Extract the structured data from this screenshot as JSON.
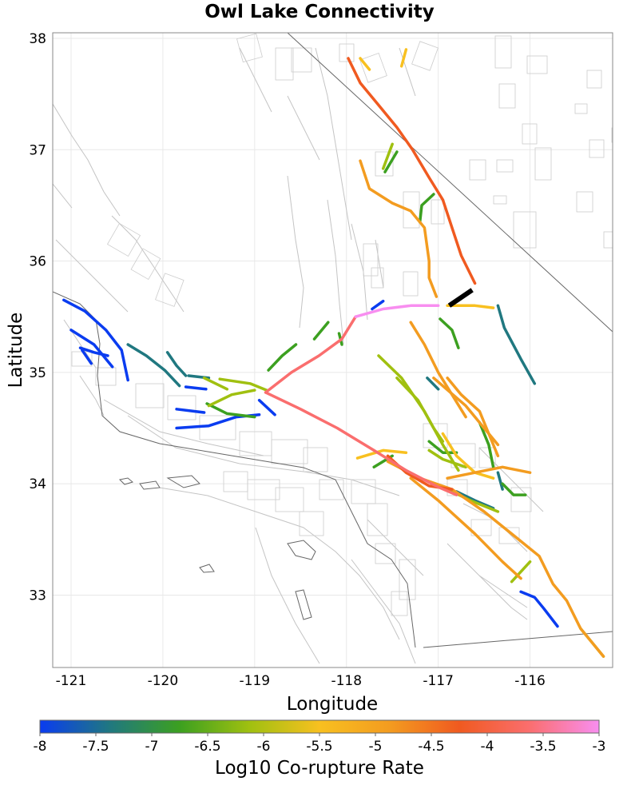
{
  "title": "Owl Lake Connectivity",
  "x_axis": {
    "label": "Longitude",
    "ticks": [
      "-121",
      "-120",
      "-119",
      "-118",
      "-117",
      "-116"
    ]
  },
  "y_axis": {
    "label": "Latitude",
    "ticks": [
      "33",
      "34",
      "35",
      "36",
      "37",
      "38"
    ]
  },
  "colorbar": {
    "label": "Log10 Co-rupture Rate",
    "ticks": [
      "-8",
      "-7.5",
      "-7",
      "-6.5",
      "-6",
      "-5.5",
      "-5",
      "-4.5",
      "-4",
      "-3.5",
      "-3"
    ],
    "colors": [
      "#0a3cf0",
      "#207880",
      "#3ca020",
      "#a0c010",
      "#f8c020",
      "#f39c20",
      "#f05a20",
      "#fa6e6e",
      "#f88ef0"
    ]
  },
  "map_data": {
    "extent": {
      "lon_min": -121.2,
      "lon_max": -115.1,
      "lat_min": 32.35,
      "lat_max": 38.05
    },
    "source_fault": {
      "name": "Owl Lake",
      "color": "#000000"
    },
    "ruptures": [
      {
        "color": "#0a3cf0",
        "pts": [
          [
            -121.08,
            35.65
          ],
          [
            -120.85,
            35.55
          ],
          [
            -120.62,
            35.38
          ],
          [
            -120.45,
            35.2
          ],
          [
            -120.38,
            34.93
          ]
        ]
      },
      {
        "color": "#0a3cf0",
        "pts": [
          [
            -121.0,
            35.38
          ],
          [
            -120.75,
            35.25
          ],
          [
            -120.55,
            35.05
          ]
        ]
      },
      {
        "color": "#0a3cf0",
        "pts": [
          [
            -120.9,
            35.22
          ],
          [
            -120.75,
            35.18
          ],
          [
            -120.6,
            35.15
          ]
        ]
      },
      {
        "color": "#0a3cf0",
        "pts": [
          [
            -120.88,
            35.2
          ],
          [
            -120.78,
            35.08
          ]
        ]
      },
      {
        "color": "#0a3cf0",
        "pts": [
          [
            -119.85,
            34.67
          ],
          [
            -119.55,
            34.64
          ]
        ]
      },
      {
        "color": "#0a3cf0",
        "pts": [
          [
            -119.85,
            34.5
          ],
          [
            -119.5,
            34.52
          ],
          [
            -119.2,
            34.6
          ],
          [
            -118.95,
            34.62
          ]
        ]
      },
      {
        "color": "#0a3cf0",
        "pts": [
          [
            -118.95,
            34.75
          ],
          [
            -118.78,
            34.62
          ]
        ]
      },
      {
        "color": "#0a3cf0",
        "pts": [
          [
            -119.75,
            34.87
          ],
          [
            -119.53,
            34.85
          ]
        ]
      },
      {
        "color": "#0a3cf0",
        "pts": [
          [
            -117.72,
            35.57
          ],
          [
            -117.6,
            35.64
          ]
        ]
      },
      {
        "color": "#0a3cf0",
        "pts": [
          [
            -116.1,
            33.03
          ],
          [
            -115.95,
            32.98
          ],
          [
            -115.85,
            32.88
          ],
          [
            -115.7,
            32.72
          ]
        ]
      },
      {
        "color": "#207880",
        "pts": [
          [
            -120.38,
            35.25
          ],
          [
            -120.18,
            35.15
          ],
          [
            -119.98,
            35.02
          ],
          [
            -119.82,
            34.88
          ]
        ]
      },
      {
        "color": "#207880",
        "pts": [
          [
            -119.95,
            35.18
          ],
          [
            -119.85,
            35.06
          ],
          [
            -119.75,
            34.97
          ]
        ]
      },
      {
        "color": "#207880",
        "pts": [
          [
            -119.72,
            34.97
          ],
          [
            -119.5,
            34.95
          ]
        ]
      },
      {
        "color": "#207880",
        "pts": [
          [
            -117.12,
            34.95
          ],
          [
            -117.0,
            34.85
          ]
        ]
      },
      {
        "color": "#207880",
        "pts": [
          [
            -116.35,
            35.6
          ],
          [
            -116.28,
            35.4
          ],
          [
            -116.1,
            35.12
          ],
          [
            -115.95,
            34.9
          ]
        ]
      },
      {
        "color": "#207880",
        "pts": [
          [
            -116.35,
            34.1
          ],
          [
            -116.3,
            33.95
          ]
        ]
      },
      {
        "color": "#207880",
        "pts": [
          [
            -116.8,
            33.93
          ],
          [
            -116.6,
            33.85
          ],
          [
            -116.4,
            33.78
          ]
        ]
      },
      {
        "color": "#3ca020",
        "pts": [
          [
            -118.85,
            35.02
          ],
          [
            -118.7,
            35.15
          ],
          [
            -118.55,
            35.25
          ]
        ]
      },
      {
        "color": "#3ca020",
        "pts": [
          [
            -118.35,
            35.3
          ],
          [
            -118.2,
            35.45
          ]
        ]
      },
      {
        "color": "#3ca020",
        "pts": [
          [
            -118.08,
            35.35
          ],
          [
            -118.05,
            35.25
          ]
        ]
      },
      {
        "color": "#3ca020",
        "pts": [
          [
            -117.58,
            36.8
          ],
          [
            -117.45,
            36.98
          ]
        ]
      },
      {
        "color": "#3ca020",
        "pts": [
          [
            -117.2,
            36.35
          ],
          [
            -117.18,
            36.5
          ],
          [
            -117.05,
            36.6
          ]
        ]
      },
      {
        "color": "#3ca020",
        "pts": [
          [
            -116.98,
            35.48
          ],
          [
            -116.85,
            35.38
          ],
          [
            -116.78,
            35.22
          ]
        ]
      },
      {
        "color": "#3ca020",
        "pts": [
          [
            -117.7,
            34.15
          ],
          [
            -117.5,
            34.25
          ]
        ]
      },
      {
        "color": "#3ca020",
        "pts": [
          [
            -117.1,
            34.38
          ],
          [
            -116.95,
            34.28
          ],
          [
            -116.8,
            34.28
          ]
        ]
      },
      {
        "color": "#3ca020",
        "pts": [
          [
            -116.55,
            34.55
          ],
          [
            -116.45,
            34.35
          ],
          [
            -116.4,
            34.15
          ]
        ]
      },
      {
        "color": "#3ca020",
        "pts": [
          [
            -116.3,
            34.0
          ],
          [
            -116.18,
            33.9
          ],
          [
            -116.05,
            33.9
          ]
        ]
      },
      {
        "color": "#3ca020",
        "pts": [
          [
            -119.52,
            34.72
          ],
          [
            -119.3,
            34.63
          ],
          [
            -119.0,
            34.6
          ]
        ]
      },
      {
        "color": "#a0c010",
        "pts": [
          [
            -119.38,
            34.94
          ],
          [
            -119.05,
            34.9
          ],
          [
            -118.87,
            34.84
          ]
        ]
      },
      {
        "color": "#a0c010",
        "pts": [
          [
            -119.5,
            34.7
          ],
          [
            -119.25,
            34.8
          ],
          [
            -119.0,
            34.84
          ]
        ]
      },
      {
        "color": "#a0c010",
        "pts": [
          [
            -119.55,
            34.95
          ],
          [
            -119.3,
            34.85
          ]
        ]
      },
      {
        "color": "#a0c010",
        "pts": [
          [
            -117.65,
            35.15
          ],
          [
            -117.4,
            34.95
          ],
          [
            -117.15,
            34.65
          ],
          [
            -116.95,
            34.35
          ],
          [
            -116.78,
            34.12
          ]
        ]
      },
      {
        "color": "#a0c010",
        "pts": [
          [
            -117.45,
            34.95
          ],
          [
            -117.22,
            34.75
          ],
          [
            -117.05,
            34.5
          ],
          [
            -116.95,
            34.38
          ]
        ]
      },
      {
        "color": "#a0c010",
        "pts": [
          [
            -117.6,
            36.83
          ],
          [
            -117.5,
            37.05
          ]
        ]
      },
      {
        "color": "#a0c010",
        "pts": [
          [
            -116.9,
            33.95
          ],
          [
            -116.65,
            33.85
          ],
          [
            -116.35,
            33.75
          ]
        ]
      },
      {
        "color": "#a0c010",
        "pts": [
          [
            -116.2,
            33.12
          ],
          [
            -116.0,
            33.3
          ]
        ]
      },
      {
        "color": "#a0c010",
        "pts": [
          [
            -115.45,
            32.7
          ],
          [
            -115.2,
            32.45
          ]
        ]
      },
      {
        "color": "#a0c010",
        "pts": [
          [
            -117.1,
            34.3
          ],
          [
            -116.95,
            34.22
          ],
          [
            -116.7,
            34.15
          ]
        ]
      },
      {
        "color": "#f8c020",
        "pts": [
          [
            -117.88,
            34.23
          ],
          [
            -117.6,
            34.3
          ],
          [
            -117.35,
            34.28
          ]
        ]
      },
      {
        "color": "#f8c020",
        "pts": [
          [
            -116.95,
            34.45
          ],
          [
            -116.8,
            34.25
          ],
          [
            -116.6,
            34.1
          ],
          [
            -116.4,
            34.05
          ]
        ]
      },
      {
        "color": "#f8c020",
        "pts": [
          [
            -116.9,
            35.6
          ],
          [
            -116.6,
            35.6
          ],
          [
            -116.4,
            35.58
          ]
        ]
      },
      {
        "color": "#f8c020",
        "pts": [
          [
            -117.85,
            37.82
          ],
          [
            -117.75,
            37.72
          ]
        ]
      },
      {
        "color": "#f8c020",
        "pts": [
          [
            -117.4,
            37.75
          ],
          [
            -117.35,
            37.9
          ]
        ]
      },
      {
        "color": "#f39c20",
        "pts": [
          [
            -117.85,
            36.9
          ],
          [
            -117.75,
            36.65
          ],
          [
            -117.5,
            36.52
          ],
          [
            -117.3,
            36.45
          ],
          [
            -117.15,
            36.3
          ],
          [
            -117.1,
            36.0
          ],
          [
            -117.1,
            35.85
          ],
          [
            -117.02,
            35.68
          ]
        ]
      },
      {
        "color": "#f39c20",
        "pts": [
          [
            -117.3,
            35.45
          ],
          [
            -117.15,
            35.25
          ],
          [
            -117.0,
            35.0
          ],
          [
            -116.85,
            34.8
          ],
          [
            -116.7,
            34.6
          ]
        ]
      },
      {
        "color": "#f39c20",
        "pts": [
          [
            -116.9,
            34.95
          ],
          [
            -116.75,
            34.8
          ],
          [
            -116.55,
            34.65
          ],
          [
            -116.45,
            34.45
          ],
          [
            -116.35,
            34.25
          ]
        ]
      },
      {
        "color": "#f39c20",
        "pts": [
          [
            -117.05,
            34.95
          ],
          [
            -116.7,
            34.7
          ],
          [
            -116.5,
            34.5
          ],
          [
            -116.35,
            34.35
          ]
        ]
      },
      {
        "color": "#f39c20",
        "pts": [
          [
            -117.3,
            34.05
          ],
          [
            -117.0,
            33.85
          ],
          [
            -116.6,
            33.55
          ],
          [
            -116.3,
            33.3
          ],
          [
            -116.1,
            33.15
          ]
        ]
      },
      {
        "color": "#f39c20",
        "pts": [
          [
            -117.55,
            34.2
          ],
          [
            -117.2,
            34.05
          ],
          [
            -116.85,
            33.95
          ],
          [
            -116.5,
            33.75
          ],
          [
            -116.2,
            33.55
          ],
          [
            -115.9,
            33.35
          ],
          [
            -115.75,
            33.1
          ],
          [
            -115.6,
            32.95
          ],
          [
            -115.45,
            32.7
          ],
          [
            -115.2,
            32.45
          ]
        ]
      },
      {
        "color": "#f39c20",
        "pts": [
          [
            -116.9,
            34.05
          ],
          [
            -116.6,
            34.1
          ],
          [
            -116.3,
            34.15
          ],
          [
            -116.0,
            34.1
          ]
        ]
      },
      {
        "color": "#f05a20",
        "pts": [
          [
            -117.98,
            37.82
          ],
          [
            -117.85,
            37.6
          ],
          [
            -117.65,
            37.4
          ],
          [
            -117.45,
            37.2
          ],
          [
            -117.28,
            37.0
          ],
          [
            -117.1,
            36.75
          ],
          [
            -116.95,
            36.55
          ],
          [
            -116.85,
            36.3
          ],
          [
            -116.75,
            36.05
          ],
          [
            -116.6,
            35.8
          ]
        ]
      },
      {
        "color": "#f05a20",
        "pts": [
          [
            -117.55,
            34.25
          ],
          [
            -117.35,
            34.1
          ],
          [
            -117.1,
            33.98
          ],
          [
            -116.85,
            33.95
          ]
        ]
      },
      {
        "color": "#fa6e6e",
        "pts": [
          [
            -118.88,
            34.82
          ],
          [
            -118.6,
            35.0
          ],
          [
            -118.3,
            35.15
          ],
          [
            -118.05,
            35.3
          ],
          [
            -117.9,
            35.5
          ]
        ]
      },
      {
        "color": "#fa6e6e",
        "pts": [
          [
            -118.88,
            34.82
          ],
          [
            -118.5,
            34.67
          ],
          [
            -118.1,
            34.5
          ],
          [
            -117.7,
            34.3
          ],
          [
            -117.35,
            34.12
          ],
          [
            -117.0,
            33.97
          ],
          [
            -116.8,
            33.9
          ]
        ]
      },
      {
        "color": "#f88ef0",
        "pts": [
          [
            -117.9,
            35.5
          ],
          [
            -117.6,
            35.57
          ],
          [
            -117.3,
            35.6
          ],
          [
            -117.0,
            35.6
          ]
        ]
      }
    ]
  }
}
